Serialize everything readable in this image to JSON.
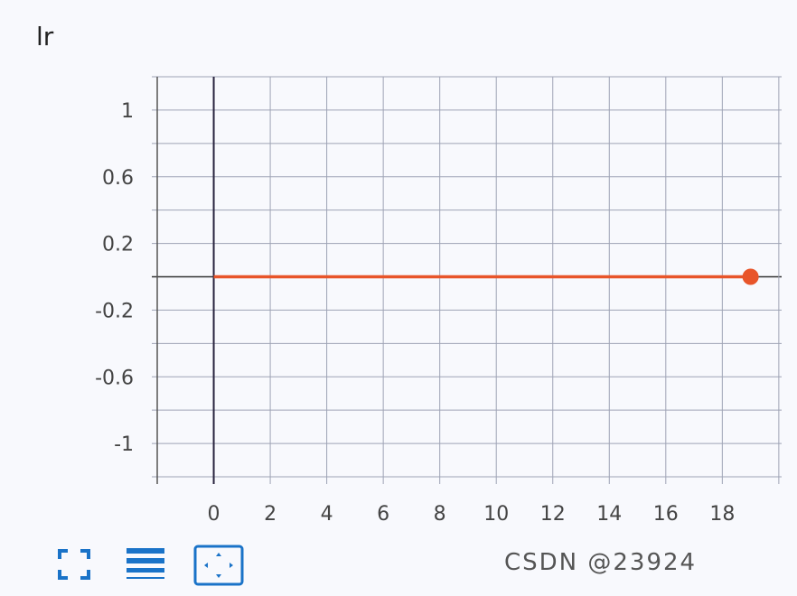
{
  "chart_data": {
    "type": "line",
    "title": "lr",
    "xlabel": "",
    "ylabel": "",
    "xlim": [
      -2,
      20.1
    ],
    "ylim": [
      -1.2,
      1.2
    ],
    "x_ticks": [
      0,
      2,
      4,
      6,
      8,
      10,
      12,
      14,
      16,
      18
    ],
    "y_ticks": [
      1,
      0.6,
      0.2,
      -0.2,
      -0.6,
      -1
    ],
    "y_tick_labels": [
      "1",
      "0.6",
      "0.2",
      "-0.2",
      "-0.6",
      "-1"
    ],
    "grid": true,
    "series": [
      {
        "color": "#e8552a",
        "x": [
          0,
          19
        ],
        "y": [
          0,
          0
        ],
        "highlight_point": [
          19,
          0
        ]
      }
    ]
  },
  "toolbar": {
    "icons": [
      "fullscreen-icon",
      "toggle-log-scale-icon",
      "fit-domain-icon"
    ],
    "accent": "#1a73c8"
  },
  "watermark": "CSDN @23924"
}
